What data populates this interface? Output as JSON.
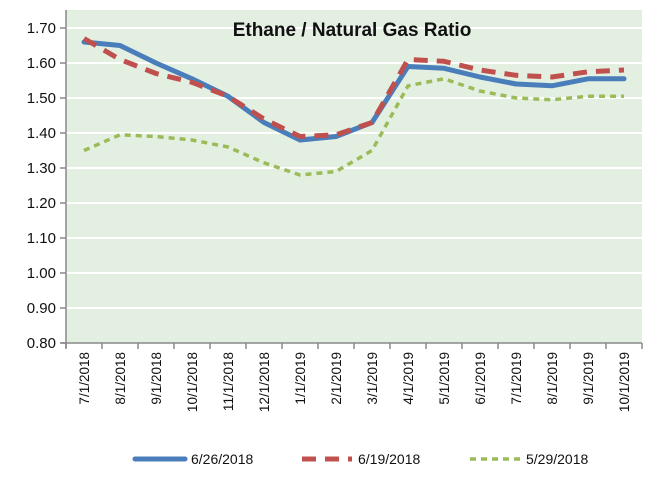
{
  "chart_data": {
    "type": "line",
    "title": "Ethane / Natural Gas Ratio",
    "xlabel": "",
    "ylabel": "",
    "ylim": [
      0.8,
      1.7
    ],
    "yticks": [
      "0.80",
      "0.90",
      "1.00",
      "1.10",
      "1.20",
      "1.30",
      "1.40",
      "1.50",
      "1.60",
      "1.70"
    ],
    "grid": true,
    "legend_position": "bottom",
    "categories": [
      "7/1/2018",
      "8/1/2018",
      "9/1/2018",
      "10/1/2018",
      "11/1/2018",
      "12/1/2018",
      "1/1/2019",
      "2/1/2019",
      "3/1/2019",
      "4/1/2019",
      "5/1/2019",
      "6/1/2019",
      "7/1/2019",
      "8/1/2019",
      "9/1/2019",
      "10/1/2019"
    ],
    "series": [
      {
        "name": "6/26/2018",
        "color": "#4a7ebb",
        "style": "solid",
        "values": [
          1.66,
          1.65,
          1.6,
          1.555,
          1.505,
          1.43,
          1.38,
          1.39,
          1.43,
          1.59,
          1.585,
          1.56,
          1.54,
          1.535,
          1.555,
          1.555
        ]
      },
      {
        "name": "6/19/2018",
        "color": "#c0504d",
        "style": "dashed",
        "values": [
          1.67,
          1.61,
          1.57,
          1.545,
          1.505,
          1.44,
          1.39,
          1.395,
          1.43,
          1.61,
          1.605,
          1.58,
          1.565,
          1.56,
          1.575,
          1.58
        ]
      },
      {
        "name": "5/29/2018",
        "color": "#9bbb59",
        "style": "dotted",
        "values": [
          1.35,
          1.395,
          1.39,
          1.38,
          1.36,
          1.315,
          1.28,
          1.29,
          1.35,
          1.535,
          1.555,
          1.52,
          1.5,
          1.495,
          1.505,
          1.505
        ]
      }
    ],
    "plot_background": "#e3f0e1"
  }
}
